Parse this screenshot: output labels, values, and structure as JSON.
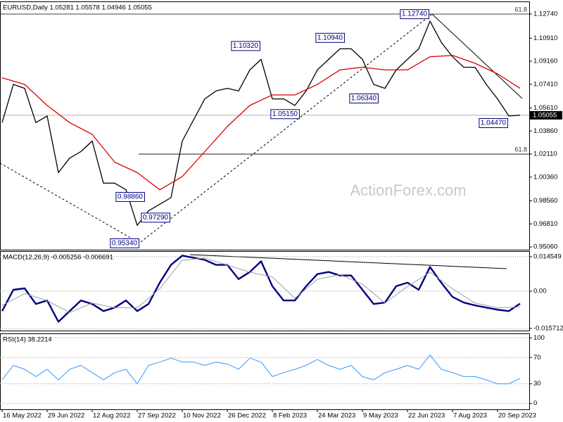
{
  "watermark": "ActionForex.com",
  "chart_data": [
    {
      "type": "line",
      "title": "EURUSD,Daily 1.05281 1.05578 1.04946 1.05055",
      "xlim": [
        -1.5,
        374.5
      ],
      "ylim": [
        0.9485,
        1.137
      ],
      "yticks": [
        {
          "value": 1.1274,
          "label": "1.12740"
        },
        {
          "value": 1.1091,
          "label": "1.10910"
        },
        {
          "value": 1.0916,
          "label": "1.09160"
        },
        {
          "value": 1.0741,
          "label": "1.07410"
        },
        {
          "value": 1.0561,
          "label": "1.05610"
        },
        {
          "value": 1.0386,
          "label": "1.03860"
        },
        {
          "value": 1.0211,
          "label": "1.02110"
        },
        {
          "value": 1.0036,
          "label": "1.00360"
        },
        {
          "value": 0.9856,
          "label": "0.98560"
        },
        {
          "value": 0.9681,
          "label": "0.96810"
        },
        {
          "value": 0.9506,
          "label": "0.95060"
        }
      ],
      "series": [
        {
          "color": "#000000",
          "x": [
            0,
            8,
            16,
            24,
            32,
            40,
            48,
            56,
            64,
            72,
            80,
            88,
            96,
            104,
            112,
            120,
            128,
            136,
            144,
            152,
            160,
            168,
            176,
            184,
            192,
            200,
            208,
            216,
            224,
            232,
            240,
            248,
            256,
            264,
            272,
            280,
            288,
            296,
            304,
            312,
            320,
            328,
            336,
            344,
            352,
            360,
            368
          ],
          "values": [
            1.045,
            1.074,
            1.071,
            1.045,
            1.05,
            1.007,
            1.018,
            1.023,
            1.031,
            0.999,
            0.999,
            0.994,
            0.967,
            0.978,
            0.983,
            0.988,
            1.031,
            1.047,
            1.063,
            1.069,
            1.071,
            1.069,
            1.085,
            1.093,
            1.063,
            1.063,
            1.058,
            1.069,
            1.085,
            1.093,
            1.101,
            1.101,
            1.093,
            1.074,
            1.071,
            1.085,
            1.093,
            1.101,
            1.122,
            1.106,
            1.095,
            1.087,
            1.087,
            1.074,
            1.063,
            1.05,
            1.0506
          ]
        },
        {
          "color": "#dd0000",
          "x": [
            0,
            16,
            32,
            48,
            64,
            80,
            96,
            112,
            128,
            144,
            160,
            176,
            192,
            208,
            224,
            240,
            256,
            272,
            288,
            304,
            320,
            336,
            352,
            368
          ],
          "values": [
            1.079,
            1.074,
            1.058,
            1.045,
            1.036,
            1.015,
            1.007,
            0.994,
            1.004,
            1.023,
            1.042,
            1.058,
            1.066,
            1.066,
            1.074,
            1.085,
            1.087,
            1.085,
            1.085,
            1.095,
            1.096,
            1.09,
            1.082,
            1.071
          ]
        }
      ],
      "annotations": [
        {
          "x": 304,
          "y": 1.1274,
          "label": "1.12740"
        },
        {
          "x": 244,
          "y": 1.1094,
          "label": "1.10940"
        },
        {
          "x": 184,
          "y": 1.1032,
          "label": "1.10320"
        },
        {
          "x": 268,
          "y": 1.0634,
          "label": "1.06340"
        },
        {
          "x": 212,
          "y": 1.0515,
          "label": "1.05150"
        },
        {
          "x": 360,
          "y": 1.0447,
          "label": "1.04470"
        },
        {
          "x": 98,
          "y": 0.9534,
          "label": "0.95340"
        },
        {
          "x": 120,
          "y": 0.9729,
          "label": "0.97290"
        },
        {
          "x": 102,
          "y": 0.9886,
          "label": "0.98860"
        }
      ],
      "levels": [
        {
          "label": "61.8",
          "value": 1.1274,
          "start": -1.5
        },
        {
          "label": "61.8",
          "value": 1.0211,
          "start": 97
        }
      ],
      "last_price": {
        "value": 1.05055,
        "label": "1.05055"
      }
    },
    {
      "type": "line",
      "title": "MACD(12,26,9) -0.005256 -0.006691",
      "xlim": [
        -1.5,
        374.5
      ],
      "ylim": [
        -0.0166,
        0.0169
      ],
      "grid": true,
      "yticks": [
        0.014549,
        {
          "value": 0,
          "label": "0.00"
        },
        -0.015712
      ],
      "series": [
        {
          "color": "#00007f",
          "width": 2.4,
          "x": [
            0,
            8,
            16,
            24,
            32,
            40,
            48,
            56,
            64,
            72,
            80,
            88,
            96,
            104,
            112,
            120,
            128,
            136,
            144,
            152,
            160,
            168,
            176,
            184,
            192,
            200,
            208,
            216,
            224,
            232,
            240,
            248,
            256,
            264,
            272,
            280,
            288,
            296,
            304,
            312,
            320,
            328,
            336,
            344,
            352,
            360,
            368
          ],
          "values": [
            -0.0084,
            0.0006,
            0.0012,
            -0.0054,
            -0.0039,
            -0.0129,
            -0.0084,
            -0.0039,
            -0.0054,
            -0.0084,
            -0.0069,
            -0.0039,
            -0.0084,
            -0.0054,
            0.0036,
            0.0111,
            0.015,
            0.0141,
            0.0132,
            0.0111,
            0.0111,
            0.0051,
            0.0081,
            0.0126,
            0.0021,
            -0.0039,
            -0.0039,
            0.0021,
            0.0072,
            0.0081,
            0.0066,
            0.0066,
            0.0006,
            -0.0054,
            -0.0048,
            0.0021,
            0.0036,
            0.0006,
            0.0102,
            0.0036,
            -0.0024,
            -0.0048,
            -0.006,
            -0.0069,
            -0.0078,
            -0.0084,
            -0.005256
          ]
        },
        {
          "color": "#a0a0a0",
          "width": 1,
          "x": [
            0,
            16,
            32,
            48,
            64,
            80,
            96,
            112,
            128,
            144,
            160,
            176,
            192,
            208,
            224,
            240,
            256,
            272,
            288,
            304,
            320,
            336,
            352,
            368
          ],
          "values": [
            -0.006,
            -0.001,
            -0.004,
            -0.009,
            -0.005,
            -0.007,
            -0.007,
            0.001,
            0.013,
            0.014,
            0.011,
            0.008,
            0.006,
            -0.003,
            0.005,
            0.007,
            0.003,
            -0.005,
            0.002,
            0.008,
            0.001,
            -0.005,
            -0.007,
            -0.006691
          ]
        }
      ]
    },
    {
      "type": "line",
      "title": "RSI(14) 38.2214",
      "xlim": [
        -1.5,
        374.5
      ],
      "ylim": [
        -8.9,
        106.7
      ],
      "grid": true,
      "yticks": [
        100,
        70,
        30,
        0
      ],
      "xticks": [
        {
          "value": 0,
          "label": "16 May 2022"
        },
        {
          "value": 32,
          "label": "29 Jun 2022"
        },
        {
          "value": 64,
          "label": "12 Aug 2022"
        },
        {
          "value": 96,
          "label": "27 Sep 2022"
        },
        {
          "value": 128,
          "label": "10 Nov 2022"
        },
        {
          "value": 160,
          "label": "26 Dec 2022"
        },
        {
          "value": 192,
          "label": "8 Feb 2023"
        },
        {
          "value": 224,
          "label": "24 Mar 2023"
        },
        {
          "value": 256,
          "label": "9 May 2023"
        },
        {
          "value": 288,
          "label": "22 Jun 2023"
        },
        {
          "value": 320,
          "label": "7 Aug 2023"
        },
        {
          "value": 352,
          "label": "20 Sep 2023"
        }
      ],
      "series": [
        {
          "color": "#3399ff",
          "width": 1,
          "x": [
            0,
            8,
            16,
            24,
            32,
            40,
            48,
            56,
            64,
            72,
            80,
            88,
            96,
            104,
            112,
            120,
            128,
            136,
            144,
            152,
            160,
            168,
            176,
            184,
            192,
            200,
            208,
            216,
            224,
            232,
            240,
            248,
            256,
            264,
            272,
            280,
            288,
            296,
            304,
            312,
            320,
            328,
            336,
            344,
            352,
            360,
            368
          ],
          "values": [
            36,
            58,
            52,
            41,
            52,
            36,
            52,
            58,
            47,
            36,
            47,
            52,
            30,
            58,
            63,
            69,
            63,
            63,
            58,
            63,
            60,
            52,
            69,
            63,
            41,
            47,
            52,
            58,
            67,
            58,
            52,
            58,
            41,
            36,
            47,
            52,
            58,
            52,
            74,
            52,
            47,
            41,
            41,
            36,
            30,
            30,
            38.2214
          ]
        }
      ]
    }
  ]
}
